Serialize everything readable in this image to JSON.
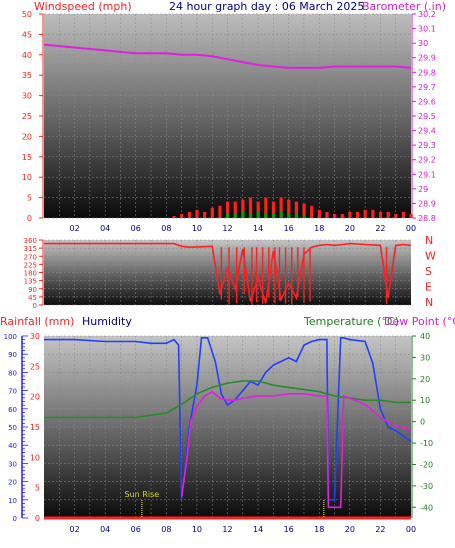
{
  "header": {
    "left_label": "Windspeed (mph)",
    "title": "24 hour graph day : 06 March 2025",
    "right_label": "Barometer (.in)"
  },
  "panel3_header": {
    "rain_label": "Rainfall (mm)",
    "hum_label": "Humidity",
    "temp_label": "Temperature (°C)",
    "dew_label": "Dew Point (°C)"
  },
  "colors": {
    "wind": "#ff2020",
    "gust": "#00a000",
    "baro": "#e020e0",
    "humidity": "#2040ff",
    "temperature": "#2a8a2a",
    "dewpoint": "#e020e0",
    "rain": "#ff2020",
    "sunrise": "#d8d820",
    "axis_red": "#ff2020",
    "axis_magenta": "#d020d0",
    "axis_blue": "#2020ff",
    "axis_green": "#208020",
    "title_blue": "#000080"
  },
  "chart_data": [
    {
      "type": "line",
      "name": "wind-barometer",
      "x_ticks": [
        "02",
        "04",
        "06",
        "08",
        "10",
        "12",
        "14",
        "16",
        "18",
        "20",
        "22",
        "00"
      ],
      "left_axis": {
        "label": "Windspeed (mph)",
        "ylim": [
          0,
          50
        ],
        "ticks": [
          "0",
          "5",
          "10",
          "15",
          "20",
          "25",
          "30",
          "35",
          "40",
          "45",
          "50"
        ]
      },
      "right_axis": {
        "label": "Barometer (.in)",
        "ylim": [
          28.8,
          30.2
        ],
        "ticks": [
          "28.8",
          "28.9",
          "29",
          "29.1",
          "29.2",
          "29.3",
          "29.4",
          "29.5",
          "29.6",
          "29.7",
          "29.8",
          "29.9",
          "30",
          "30.1",
          "30.2"
        ]
      },
      "series": [
        {
          "key": "barometer",
          "axis": "right",
          "x": [
            0,
            1,
            2,
            3,
            4,
            5,
            6,
            7,
            8,
            9,
            10,
            11,
            12,
            13,
            14,
            15,
            16,
            17,
            18,
            19,
            20,
            21,
            22,
            23,
            24
          ],
          "y": [
            29.99,
            29.98,
            29.97,
            29.96,
            29.95,
            29.94,
            29.93,
            29.93,
            29.93,
            29.92,
            29.92,
            29.91,
            29.89,
            29.87,
            29.85,
            29.84,
            29.83,
            29.83,
            29.83,
            29.84,
            29.84,
            29.84,
            29.84,
            29.84,
            29.83
          ]
        },
        {
          "key": "wind",
          "axis": "left",
          "x": [
            0,
            2,
            4,
            6,
            8,
            8.5,
            9,
            9.5,
            10,
            10.5,
            11,
            11.5,
            12,
            12.5,
            13,
            13.5,
            14,
            14.5,
            15,
            15.5,
            16,
            16.5,
            17,
            17.5,
            18,
            18.5,
            19,
            19.5,
            20,
            20.5,
            21,
            21.5,
            22,
            22.5,
            23,
            23.5,
            24
          ],
          "y": [
            0,
            0,
            0,
            0,
            0,
            0.5,
            1,
            1.5,
            2,
            1.5,
            2.5,
            3,
            4,
            4,
            4.5,
            5,
            4,
            5,
            4,
            5,
            4.5,
            4,
            3.5,
            3,
            2,
            1.5,
            1,
            1,
            1.5,
            1.5,
            2,
            2,
            1.5,
            1.5,
            1,
            1.5,
            1
          ]
        },
        {
          "key": "gust",
          "axis": "left",
          "x": [
            12,
            12.5,
            13,
            13.5,
            14,
            14.5,
            15,
            15.5,
            16,
            16.5,
            17
          ],
          "y": [
            1,
            1,
            1.5,
            1,
            1.5,
            1,
            1,
            1.5,
            1,
            1,
            0.5
          ]
        }
      ]
    },
    {
      "type": "line",
      "name": "wind-direction",
      "ylim": [
        0,
        360
      ],
      "ticks": [
        "0",
        "45",
        "90",
        "135",
        "180",
        "225",
        "270",
        "315",
        "360"
      ],
      "compass": [
        "N",
        "W",
        "S",
        "E",
        "N"
      ],
      "x": [
        0,
        8.5,
        9,
        9.5,
        10,
        11,
        11.5,
        12,
        12.5,
        13,
        13.5,
        14,
        14.5,
        15,
        15.5,
        16,
        16.5,
        17,
        17.5,
        18,
        18.5,
        19,
        19.5,
        20,
        21,
        22,
        22.5,
        23,
        23.5,
        24
      ],
      "y": [
        340,
        340,
        325,
        320,
        322,
        325,
        60,
        200,
        90,
        310,
        20,
        150,
        10,
        300,
        30,
        120,
        40,
        280,
        320,
        330,
        335,
        330,
        335,
        340,
        335,
        330,
        40,
        330,
        335,
        330
      ]
    },
    {
      "type": "line",
      "name": "rain-humidity-temperature",
      "x_ticks": [
        "02",
        "04",
        "06",
        "08",
        "10",
        "12",
        "14",
        "16",
        "18",
        "20",
        "22",
        "00"
      ],
      "rain_axis": {
        "label": "Rainfall (mm)",
        "ylim": [
          0,
          30
        ],
        "ticks": [
          "0",
          "5",
          "10",
          "15",
          "20",
          "25",
          "30"
        ]
      },
      "humidity_axis": {
        "label": "Humidity",
        "ylim": [
          0,
          100
        ],
        "ticks": [
          "0",
          "10",
          "20",
          "30",
          "40",
          "50",
          "60",
          "70",
          "80",
          "90",
          "100"
        ]
      },
      "temperature_axis": {
        "label": "Temperature (°C)",
        "ylim": [
          -45,
          40
        ],
        "ticks": [
          "-40",
          "-30",
          "-20",
          "-10",
          "0",
          "10",
          "20",
          "30",
          "40"
        ]
      },
      "annotation": "Sun Rise",
      "sunrise_hours": [
        6.4,
        18.3
      ],
      "series": [
        {
          "key": "humidity",
          "x": [
            0,
            2,
            4,
            6,
            7,
            8,
            8.5,
            8.8,
            9.0,
            9.5,
            10.0,
            10.3,
            10.7,
            11.2,
            11.6,
            12.0,
            12.5,
            13.0,
            13.5,
            14.0,
            14.5,
            15.0,
            15.5,
            16.0,
            16.5,
            17.0,
            17.5,
            18.0,
            18.5,
            18.6,
            19.0,
            19.4,
            19.6,
            20.0,
            21.0,
            21.5,
            22.0,
            22.5,
            23.0,
            23.5,
            24
          ],
          "y": [
            98,
            98,
            97,
            97,
            96,
            96,
            98,
            95,
            10,
            50,
            73,
            99,
            99,
            86,
            68,
            62,
            65,
            70,
            75,
            73,
            80,
            84,
            86,
            88,
            86,
            95,
            97,
            98,
            98,
            10,
            10,
            99,
            99,
            98,
            97,
            85,
            60,
            50,
            48,
            45,
            42
          ]
        },
        {
          "key": "temperature",
          "x": [
            0,
            2,
            4,
            6,
            7,
            8,
            9,
            10,
            11,
            12,
            13,
            14,
            15,
            16,
            17,
            18,
            19,
            20,
            21,
            22,
            23,
            24
          ],
          "y": [
            2,
            2,
            2,
            2,
            3,
            4,
            8,
            13,
            16,
            18,
            19,
            19,
            17,
            16,
            15,
            14,
            12,
            11,
            10,
            10,
            9,
            9
          ]
        },
        {
          "key": "dewpoint",
          "x": [
            9,
            9.3,
            9.6,
            10,
            10.5,
            11,
            11.5,
            12,
            12.5,
            13,
            14,
            15,
            16,
            17,
            18,
            18.5,
            18.6,
            19,
            19.4,
            19.6,
            20,
            21,
            22,
            23,
            24
          ],
          "y": [
            -35,
            -20,
            0,
            7,
            12,
            14,
            11,
            10,
            10,
            11,
            12,
            12,
            13,
            13,
            12,
            12,
            -40,
            -40,
            -40,
            12,
            11,
            8,
            2,
            -2,
            -4
          ]
        },
        {
          "key": "rain",
          "x": [
            0,
            24
          ],
          "y": [
            0,
            0
          ]
        }
      ]
    }
  ]
}
